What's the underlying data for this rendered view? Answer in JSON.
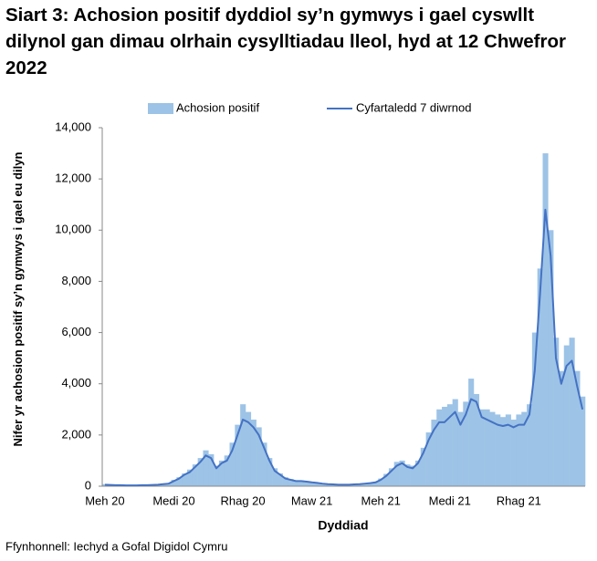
{
  "chart_data": {
    "type": "bar-line",
    "title": "Siart 3: Achosion positif dyddiol sy’n gymwys i gael cyswllt dilynol gan dimau olrhain cysylltiadau lleol, hyd at 12 Chwefror 2022",
    "y_label": "Nifer yr achosion positif sy’n gymwys i gael eu dilyn",
    "x_label": "Dyddiad",
    "source": "Ffynhonnell: Iechyd a Gofal Digidol Cymru",
    "categories": [
      "Meh 20",
      null,
      null,
      null,
      null,
      null,
      null,
      null,
      null,
      null,
      null,
      null,
      null,
      "Medi 20",
      null,
      null,
      null,
      null,
      null,
      null,
      null,
      null,
      null,
      null,
      null,
      null,
      "Rhag 20",
      null,
      null,
      null,
      null,
      null,
      null,
      null,
      null,
      null,
      null,
      null,
      null,
      "Maw 21",
      null,
      null,
      null,
      null,
      null,
      null,
      null,
      null,
      null,
      null,
      null,
      null,
      "Meh 21",
      null,
      null,
      null,
      null,
      null,
      null,
      null,
      null,
      null,
      null,
      null,
      null,
      "Medi 21",
      null,
      null,
      null,
      null,
      null,
      null,
      null,
      null,
      null,
      null,
      null,
      null,
      "Rhag 21",
      null,
      null,
      null,
      null,
      null,
      null,
      null,
      null,
      null,
      null,
      null,
      null
    ],
    "series": [
      {
        "name": "Achosion positif",
        "kind": "bar",
        "color": "#9dc3e6",
        "values": [
          80,
          60,
          50,
          40,
          40,
          30,
          40,
          50,
          50,
          60,
          70,
          100,
          120,
          250,
          350,
          500,
          650,
          850,
          1100,
          1400,
          1250,
          800,
          1000,
          1200,
          1700,
          2400,
          3200,
          2900,
          2600,
          2300,
          1700,
          1100,
          700,
          500,
          350,
          280,
          230,
          220,
          200,
          170,
          140,
          110,
          90,
          80,
          70,
          70,
          70,
          80,
          90,
          110,
          140,
          170,
          300,
          480,
          700,
          950,
          1000,
          850,
          800,
          1000,
          1500,
          2100,
          2600,
          3000,
          3100,
          3200,
          3400,
          2900,
          3300,
          4200,
          3600,
          3000,
          3000,
          2900,
          2800,
          2700,
          2800,
          2600,
          2800,
          2900,
          3200,
          6000,
          8500,
          13000,
          10000,
          5800,
          4500,
          5500,
          5800,
          4500,
          3500
        ]
      },
      {
        "name": "Cyfartaledd 7 diwrnod",
        "kind": "line",
        "color": "#4472c4",
        "values": [
          60,
          50,
          40,
          40,
          30,
          30,
          30,
          40,
          40,
          50,
          60,
          80,
          100,
          200,
          300,
          450,
          550,
          750,
          950,
          1200,
          1100,
          700,
          900,
          1000,
          1400,
          2000,
          2600,
          2500,
          2300,
          2000,
          1500,
          1000,
          600,
          450,
          300,
          250,
          200,
          200,
          180,
          150,
          130,
          100,
          80,
          70,
          60,
          60,
          60,
          70,
          80,
          100,
          120,
          150,
          250,
          400,
          600,
          800,
          900,
          750,
          700,
          900,
          1300,
          1800,
          2200,
          2500,
          2500,
          2700,
          2900,
          2400,
          2800,
          3400,
          3300,
          2700,
          2600,
          2500,
          2400,
          2350,
          2400,
          2300,
          2400,
          2400,
          2800,
          4500,
          7500,
          10800,
          9000,
          5000,
          4000,
          4700,
          4900,
          3900,
          3000
        ]
      }
    ],
    "ylim": [
      0,
      14000
    ],
    "yticks": [
      0,
      {
        "value": 2000,
        "label": "2,000"
      },
      {
        "value": 4000,
        "label": "4,000"
      },
      {
        "value": 6000,
        "label": "6,000"
      },
      {
        "value": 8000,
        "label": "8,000"
      },
      {
        "value": 10000,
        "label": "10,000"
      },
      {
        "value": 12000,
        "label": "12,000"
      },
      {
        "value": 14000,
        "label": "14,000"
      }
    ],
    "legend": "top"
  }
}
